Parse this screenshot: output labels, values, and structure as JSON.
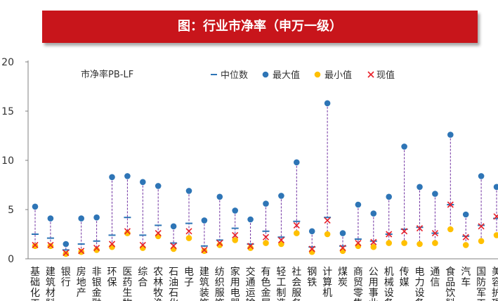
{
  "header": {
    "title": "图：行业市净率（申万一级）"
  },
  "chart_data": {
    "type": "scatter",
    "annotation": "市净率PB-LF",
    "ylim": [
      0,
      20
    ],
    "yticks": [
      0,
      5,
      10,
      15,
      20
    ],
    "legend": {
      "position": "top-right",
      "items": [
        "中位数",
        "最大值",
        "最小值",
        "现值"
      ]
    },
    "colors": {
      "median": "#2e75b6",
      "max": "#2e75b6",
      "min": "#ffc000",
      "current": "#e8212a",
      "range_line": "#7030a0"
    },
    "categories": [
      "基础化工",
      "建筑材料",
      "银行",
      "房地产",
      "非银金融",
      "环保",
      "医药生物",
      "综合",
      "农林牧渔",
      "石油石化",
      "电子",
      "建筑装饰",
      "纺织服饰",
      "家用电器",
      "交通运输",
      "有色金属",
      "轻工制造",
      "社会服务",
      "钢铁",
      "计算机",
      "煤炭",
      "商贸零售",
      "公用事业",
      "机械设备",
      "传媒",
      "电力设备",
      "通信",
      "食品饮料",
      "汽车",
      "国防军工",
      "美容护理"
    ],
    "x_labels": [
      "基础化工",
      "建筑材料",
      "银行",
      "房地产",
      "非银金融",
      "环保",
      "医药生物",
      "综合",
      "农林牧渔",
      "石油石化",
      "电子",
      "建筑装饰",
      "纺织服饰",
      "家用电器",
      "交通运输",
      "有色金属",
      "轻工制造",
      "社会服务",
      "钢铁",
      "计算机",
      "煤炭",
      "商贸零售",
      "公用事业",
      "机械设备",
      "传媒",
      "电力设备",
      "通信",
      "食品饮料",
      "汽车",
      "国防军工",
      "美容护理"
    ],
    "series": [
      {
        "name": "中位数",
        "values": [
          2.5,
          2.1,
          0.9,
          1.5,
          1.8,
          2.4,
          4.2,
          2.4,
          3.4,
          1.6,
          3.6,
          1.3,
          1.9,
          3.1,
          1.5,
          2.8,
          2.2,
          3.8,
          1.2,
          4.2,
          1.3,
          2.0,
          1.8,
          2.5,
          3.0,
          3.2,
          2.6,
          5.5,
          2.3,
          3.4,
          4.1
        ]
      },
      {
        "name": "最大值",
        "values": [
          5.3,
          4.1,
          1.5,
          4.1,
          4.2,
          8.3,
          8.4,
          7.8,
          7.4,
          3.3,
          6.9,
          3.9,
          6.3,
          4.9,
          4.0,
          5.6,
          6.4,
          9.8,
          2.8,
          15.8,
          2.6,
          5.5,
          4.6,
          6.3,
          11.4,
          7.3,
          6.6,
          12.6,
          4.5,
          8.4,
          7.3
        ]
      },
      {
        "name": "最小值",
        "values": [
          1.3,
          1.3,
          0.5,
          0.7,
          0.9,
          1.2,
          2.6,
          1.1,
          2.3,
          1.0,
          2.1,
          0.8,
          1.4,
          1.9,
          1.1,
          1.6,
          1.5,
          2.6,
          0.7,
          2.5,
          0.8,
          1.3,
          1.2,
          1.6,
          1.6,
          1.5,
          1.6,
          3.0,
          1.4,
          1.8,
          2.4
        ]
      },
      {
        "name": "现值",
        "values": [
          1.4,
          1.4,
          0.6,
          0.8,
          1.1,
          1.5,
          2.8,
          1.4,
          2.6,
          1.3,
          2.8,
          0.9,
          1.6,
          2.4,
          1.3,
          2.2,
          1.9,
          3.4,
          1.0,
          3.9,
          1.1,
          1.6,
          1.7,
          2.5,
          2.8,
          3.1,
          2.6,
          5.5,
          2.2,
          3.3,
          4.3
        ]
      }
    ]
  }
}
